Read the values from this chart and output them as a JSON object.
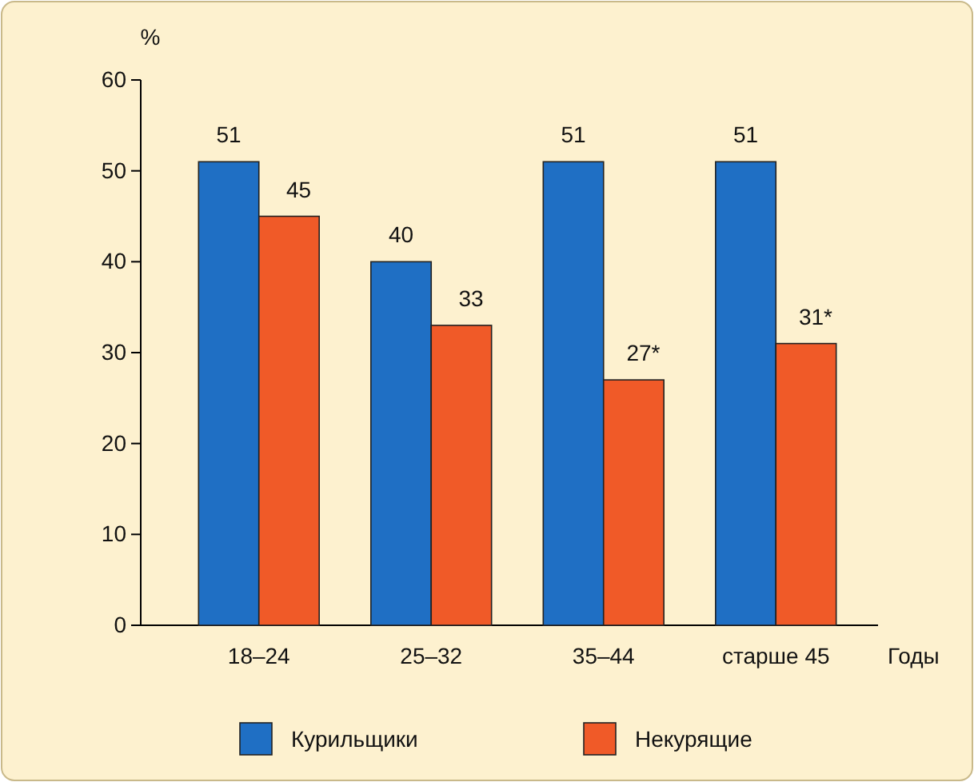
{
  "chart_data": {
    "type": "bar",
    "ylabel": "%",
    "xlabel": "Годы",
    "categories": [
      "18–24",
      "25–32",
      "35–44",
      "старше 45"
    ],
    "series": [
      {
        "name": "Курильщики",
        "color": "#1f6fc4",
        "values": [
          51,
          40,
          51,
          51
        ],
        "value_labels": [
          "51",
          "40",
          "51",
          "51"
        ]
      },
      {
        "name": "Некурящие",
        "color": "#f05a28",
        "values": [
          45,
          33,
          27,
          31
        ],
        "value_labels": [
          "45",
          "33",
          "27*",
          "31*"
        ]
      }
    ],
    "ylim": [
      0,
      60
    ],
    "yticks": [
      0,
      10,
      20,
      30,
      40,
      50,
      60
    ],
    "grid": false,
    "legend": "bottom"
  }
}
